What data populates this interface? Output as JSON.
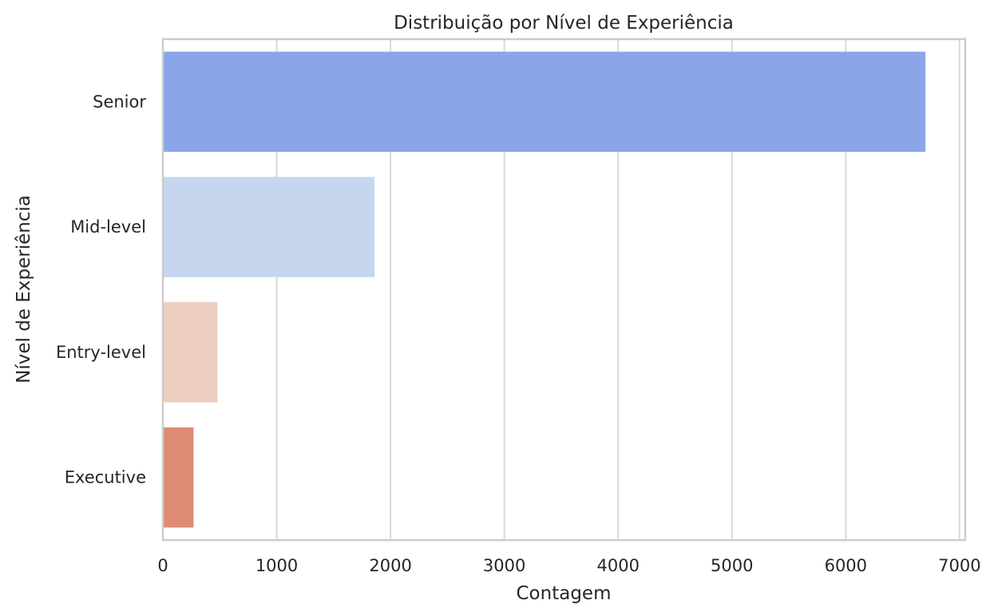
{
  "chart_data": {
    "type": "bar",
    "orientation": "horizontal",
    "title": "Distribuição por Nível de Experiência",
    "xlabel": "Contagem",
    "ylabel": "Nível de Experiência",
    "categories": [
      "Senior",
      "Mid-level",
      "Entry-level",
      "Executive"
    ],
    "values": [
      6700,
      1860,
      480,
      270
    ],
    "colors": [
      "#8aa6e8",
      "#c7d6ef",
      "#eccdbf",
      "#df8c74"
    ],
    "xlim": [
      0,
      7050
    ],
    "xticks": [
      0,
      1000,
      2000,
      3000,
      4000,
      5000,
      6000,
      7000
    ],
    "xtick_labels": [
      "0",
      "1000",
      "2000",
      "3000",
      "4000",
      "5000",
      "6000",
      "7000"
    ],
    "grid": true,
    "legend": "none"
  }
}
